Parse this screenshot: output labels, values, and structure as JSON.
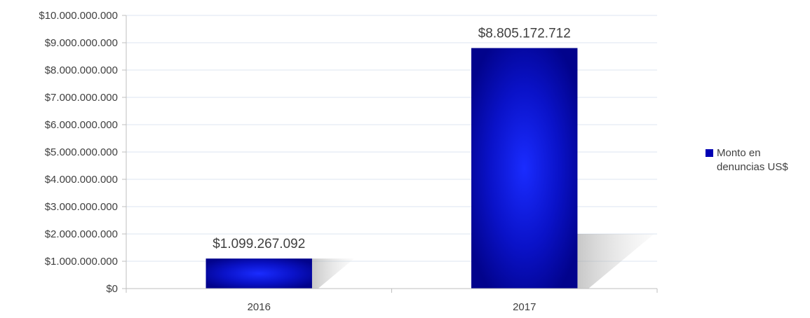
{
  "chart_data": {
    "type": "bar",
    "categories": [
      "2016",
      "2017"
    ],
    "series": [
      {
        "name": "Monto en denuncias US$",
        "values": [
          1099267092,
          8805172712
        ],
        "color": "#0000b3"
      }
    ],
    "data_labels": [
      "$1.099.267.092",
      "$8.805.172.712"
    ],
    "y_tick_labels": [
      "$0",
      "$1.000.000.000",
      "$2.000.000.000",
      "$3.000.000.000",
      "$4.000.000.000",
      "$5.000.000.000",
      "$6.000.000.000",
      "$7.000.000.000",
      "$8.000.000.000",
      "$9.000.000.000",
      "$10.000.000.000"
    ],
    "ylim": [
      0,
      10000000000
    ],
    "grid": true,
    "legend_position": "right",
    "title": "",
    "xlabel": "",
    "ylabel": ""
  },
  "legend": {
    "label": "Monto en denuncias US$",
    "color": "#0000b3"
  }
}
